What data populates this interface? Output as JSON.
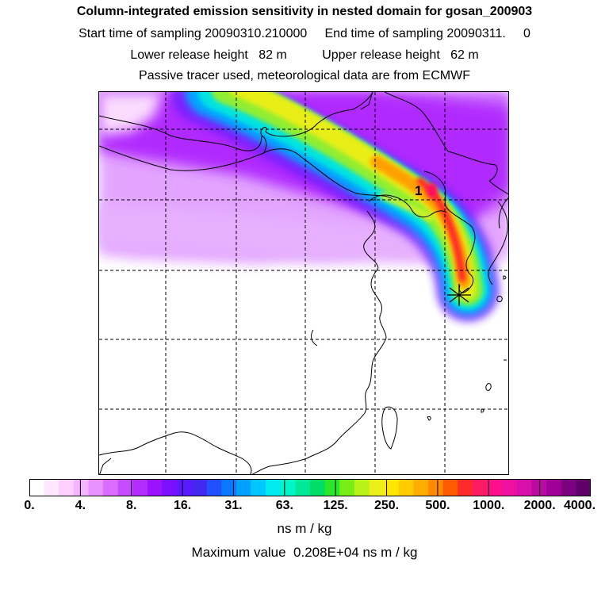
{
  "header": {
    "title": "Column-integrated emission sensitivity in nested domain for gosan_200903",
    "sampling": "Start time of sampling 20090310.210000     End time of sampling 20090311.     0",
    "release": "Lower release height   82 m          Upper release height   62 m",
    "tracer": "Passive tracer used, meteorological data are from ECMWF"
  },
  "map": {
    "release_label": "1",
    "receptor_marker": "star-marker"
  },
  "colorbar": {
    "colors": [
      "#ffffff",
      "#ffe8ff",
      "#ffd0ff",
      "#f4b4ff",
      "#e890ff",
      "#da6cff",
      "#c84cff",
      "#b22cff",
      "#9a12ff",
      "#7a10ff",
      "#5a1aff",
      "#4428f0",
      "#2050ff",
      "#0a78ff",
      "#00a0ff",
      "#00c8ff",
      "#00eaf0",
      "#00f5c8",
      "#00e89a",
      "#00dd66",
      "#28e628",
      "#78ee18",
      "#b8f218",
      "#eaf018",
      "#ffe800",
      "#ffcc00",
      "#ffad00",
      "#ff8a00",
      "#ff5a00",
      "#ff2a2a",
      "#ff1a66",
      "#ff108a",
      "#ee10a0",
      "#d610a8",
      "#ba0aa0",
      "#a00098",
      "#7a0080",
      "#600068"
    ],
    "tick_labels": [
      "0.",
      "4.",
      "8.",
      "16.",
      "31.",
      "63.",
      "125.",
      "250.",
      "500.",
      "1000.",
      "2000.",
      "4000."
    ],
    "unit": "ns m / kg"
  },
  "footer": {
    "max_value": "Maximum value  0.208E+04 ns m / kg"
  }
}
